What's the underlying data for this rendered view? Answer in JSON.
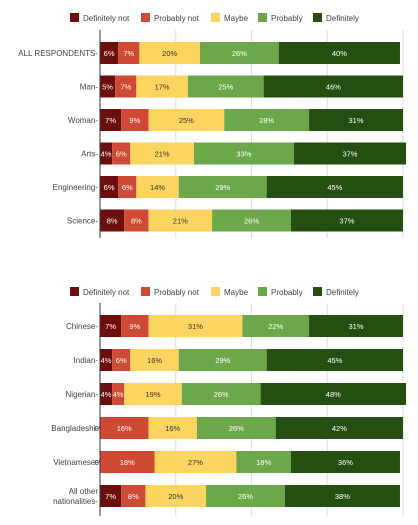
{
  "chart_data": [
    {
      "type": "bar",
      "orientation": "horizontal",
      "stacked": true,
      "legend_position": "top",
      "xlim": [
        0,
        100
      ],
      "grid": true,
      "categories": [
        "ALL RESPONDENTS",
        "Man",
        "Woman",
        "Arts",
        "Engineering",
        "Science"
      ],
      "series": [
        {
          "name": "Definitely not",
          "color": "#6b0e0c",
          "values": [
            6,
            5,
            7,
            4,
            6,
            8
          ]
        },
        {
          "name": "Probably not",
          "color": "#cf4a34",
          "values": [
            7,
            7,
            9,
            6,
            6,
            8
          ]
        },
        {
          "name": "Maybe",
          "color": "#fcd560",
          "values": [
            20,
            17,
            25,
            21,
            14,
            21
          ]
        },
        {
          "name": "Probably",
          "color": "#6ca84a",
          "values": [
            26,
            25,
            28,
            33,
            29,
            26
          ]
        },
        {
          "name": "Definitely",
          "color": "#254f10",
          "values": [
            40,
            46,
            31,
            37,
            45,
            37
          ]
        }
      ]
    },
    {
      "type": "bar",
      "orientation": "horizontal",
      "stacked": true,
      "legend_position": "top",
      "xlim": [
        0,
        100
      ],
      "grid": true,
      "categories": [
        "Chinese",
        "Indian",
        "Nigerian",
        "Bangladeshi",
        "Vietnamese",
        "All other nationalities"
      ],
      "series": [
        {
          "name": "Definitely not",
          "color": "#6b0e0c",
          "values": [
            7,
            4,
            4,
            0,
            0,
            7
          ]
        },
        {
          "name": "Probably not",
          "color": "#cf4a34",
          "values": [
            9,
            6,
            4,
            16,
            18,
            8
          ]
        },
        {
          "name": "Maybe",
          "color": "#fcd560",
          "values": [
            31,
            16,
            19,
            16,
            27,
            20
          ]
        },
        {
          "name": "Probably",
          "color": "#6ca84a",
          "values": [
            22,
            29,
            26,
            26,
            18,
            26
          ]
        },
        {
          "name": "Definitely",
          "color": "#254f10",
          "values": [
            31,
            45,
            48,
            42,
            36,
            38
          ]
        }
      ]
    }
  ]
}
